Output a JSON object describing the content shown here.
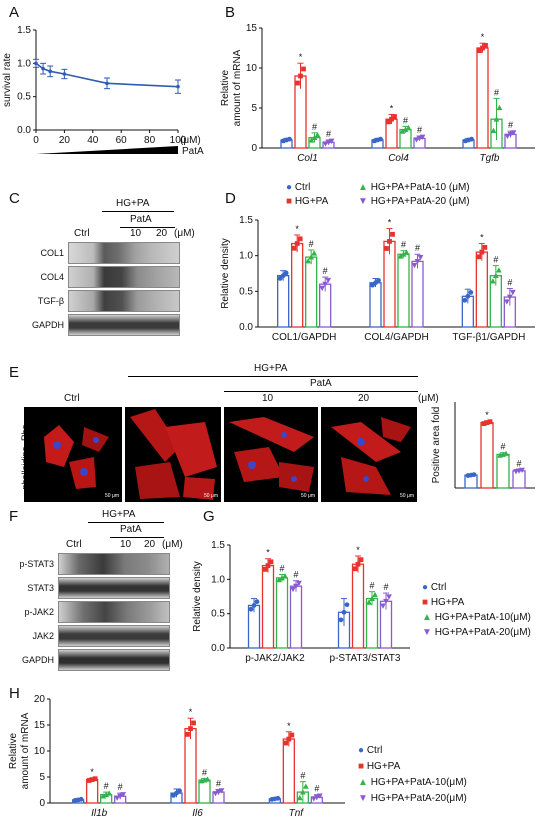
{
  "colors": {
    "ctrl": "#3a66c8",
    "hgpa": "#e8322d",
    "pata10": "#33b34a",
    "pata20": "#8a5bd0",
    "lineA": "#2f5bb3"
  },
  "panels": {
    "A": "A",
    "B": "B",
    "C": "C",
    "D": "D",
    "E": "E",
    "F": "F",
    "G": "G",
    "H": "H"
  },
  "legend": {
    "ctrl": "Ctrl",
    "hgpa": "HG+PA",
    "pata10": "HG+PA+PatA-10(μM)",
    "pata20": "HG+PA+PatA-20(μM)",
    "d_ctrl": "Ctrl",
    "d_hgpa": "HG+PA",
    "d_pata10": "HG+PA+PatA-10 (μM)",
    "d_pata20": "HG+PA+PatA-20 (μM)"
  },
  "sig": {
    "star": "*",
    "hash": "#"
  },
  "panel_c": {
    "hgpa": "HG+PA",
    "pata": "PatA",
    "ctrl": "Ctrl",
    "d10": "10",
    "d20": "20",
    "unit": "(μM)",
    "rows": [
      "COL1",
      "COL4",
      "TGF-β",
      "GAPDH"
    ]
  },
  "panel_e": {
    "hgpa": "HG+PA",
    "pata": "PatA",
    "ctrl": "Ctrl",
    "d10": "10",
    "d20": "20",
    "unit": "(μM)",
    "stain": "phalloidine -Rho",
    "scale": "50 μm"
  },
  "panel_f": {
    "hgpa": "HG+PA",
    "pata": "PatA",
    "ctrl": "Ctrl",
    "d10": "10",
    "d20": "20",
    "unit": "(μM)",
    "rows": [
      "p-STAT3",
      "STAT3",
      "p-JAK2",
      "JAK2",
      "GAPDH"
    ]
  },
  "chart_data": [
    {
      "id": "A",
      "type": "line",
      "x": [
        0,
        5,
        10,
        20,
        50,
        100
      ],
      "y": [
        1.0,
        0.92,
        0.88,
        0.84,
        0.7,
        0.65
      ],
      "err": [
        0.06,
        0.08,
        0.08,
        0.07,
        0.08,
        0.1
      ],
      "ylabel": "survival rate",
      "xunit": "(μM)",
      "xticks": [
        "0",
        "20",
        "40",
        "60",
        "80",
        "100"
      ],
      "yticks": [
        "0.0",
        "0.5",
        "1.0",
        "1.5"
      ],
      "xlim": [
        0,
        100
      ],
      "ylim": [
        0,
        1.5
      ],
      "wedge_label": "PatA"
    },
    {
      "id": "B",
      "type": "bar",
      "ylabel": "Relative amount of mRNA",
      "ylim": [
        0,
        15
      ],
      "yticks": [
        "0",
        "5",
        "10",
        "15"
      ],
      "categories": [
        "Col1",
        "Col4",
        "Tgfb"
      ],
      "series": [
        {
          "values": [
            1.0,
            1.0,
            1.0
          ],
          "err": [
            0.2,
            0.2,
            0.2
          ]
        },
        {
          "values": [
            9.0,
            3.6,
            12.5
          ],
          "err": [
            1.6,
            0.6,
            0.6
          ]
        },
        {
          "values": [
            1.3,
            2.3,
            3.6
          ],
          "err": [
            0.6,
            0.4,
            2.6
          ]
        },
        {
          "values": [
            0.7,
            1.2,
            1.7
          ],
          "err": [
            0.3,
            0.3,
            0.4
          ]
        }
      ],
      "sig": [
        [
          "",
          "*",
          "#",
          "#"
        ],
        [
          "",
          "*",
          "#",
          "#"
        ],
        [
          "",
          "*",
          "#",
          "#"
        ]
      ]
    },
    {
      "id": "D",
      "type": "bar",
      "ylabel": "Relative density",
      "ylim": [
        0,
        1.5
      ],
      "yticks": [
        "0.0",
        "0.5",
        "1.0",
        "1.5"
      ],
      "categories": [
        "COL1/GAPDH",
        "COL4/GAPDH",
        "TGF-β1/GAPDH"
      ],
      "series": [
        {
          "values": [
            0.72,
            0.62,
            0.43
          ],
          "err": [
            0.07,
            0.06,
            0.1
          ]
        },
        {
          "values": [
            1.17,
            1.2,
            1.05
          ],
          "err": [
            0.12,
            0.18,
            0.12
          ]
        },
        {
          "values": [
            0.98,
            1.02,
            0.72
          ],
          "err": [
            0.1,
            0.05,
            0.14
          ]
        },
        {
          "values": [
            0.6,
            0.92,
            0.42
          ],
          "err": [
            0.1,
            0.1,
            0.12
          ]
        }
      ],
      "sig": [
        [
          "",
          "*",
          "#",
          "#"
        ],
        [
          "",
          "*",
          "#",
          "#"
        ],
        [
          "",
          "*",
          "#",
          "#"
        ]
      ]
    },
    {
      "id": "E",
      "type": "bar",
      "ylabel": "Positive area fold",
      "ylim": [
        0,
        20
      ],
      "yticks": [],
      "categories": [
        ""
      ],
      "series": [
        {
          "values": [
            3.0
          ],
          "err": [
            0.2
          ]
        },
        {
          "values": [
            15.2
          ],
          "err": [
            0.4
          ]
        },
        {
          "values": [
            7.8
          ],
          "err": [
            0.4
          ]
        },
        {
          "values": [
            4.0
          ],
          "err": [
            0.3
          ]
        }
      ],
      "sig": [
        [
          "",
          "*",
          "#",
          "#"
        ]
      ]
    },
    {
      "id": "G",
      "type": "bar",
      "ylabel": "Relative density",
      "ylim": [
        0,
        1.5
      ],
      "yticks": [
        "0.0",
        "0.5",
        "1.0",
        "1.5"
      ],
      "categories": [
        "p-JAK2/JAK2",
        "p-STAT3/STAT3"
      ],
      "series": [
        {
          "values": [
            0.62,
            0.52
          ],
          "err": [
            0.1,
            0.2
          ]
        },
        {
          "values": [
            1.2,
            1.22
          ],
          "err": [
            0.1,
            0.12
          ]
        },
        {
          "values": [
            1.02,
            0.72
          ],
          "err": [
            0.05,
            0.1
          ]
        },
        {
          "values": [
            0.9,
            0.68
          ],
          "err": [
            0.08,
            0.12
          ]
        }
      ],
      "sig": [
        [
          "",
          "*",
          "#",
          "#"
        ],
        [
          "",
          "*",
          "#",
          "#"
        ]
      ]
    },
    {
      "id": "H",
      "type": "bar",
      "ylabel": "Relative amount of mRNA",
      "ylim": [
        0,
        20
      ],
      "yticks": [
        "0",
        "5",
        "10",
        "15",
        "20"
      ],
      "categories": [
        "Il1b",
        "Il6",
        "Tnf"
      ],
      "series": [
        {
          "values": [
            0.6,
            1.9,
            0.8
          ],
          "err": [
            0.2,
            0.8,
            0.2
          ]
        },
        {
          "values": [
            4.5,
            14.3,
            12.3
          ],
          "err": [
            0.3,
            2.0,
            1.4
          ]
        },
        {
          "values": [
            1.6,
            4.4,
            2.1
          ],
          "err": [
            0.5,
            0.3,
            2.0
          ]
        },
        {
          "values": [
            1.3,
            2.1,
            1.1
          ],
          "err": [
            0.6,
            0.5,
            0.5
          ]
        }
      ],
      "sig": [
        [
          "",
          "*",
          "#",
          "#"
        ],
        [
          "",
          "*",
          "#",
          "#"
        ],
        [
          "",
          "*",
          "#",
          "#"
        ]
      ]
    }
  ]
}
